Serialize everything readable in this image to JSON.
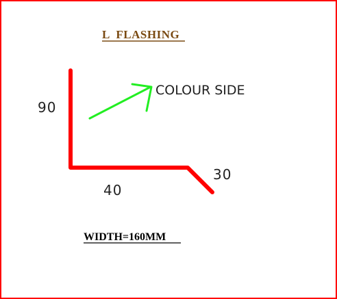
{
  "title": "L  FLASHING",
  "dimensions": {
    "vertical": "90",
    "horizontal": "40",
    "angled": "30"
  },
  "annotation": "COLOUR SIDE",
  "width_note": "WIDTH=160MM",
  "colors": {
    "border": "#ff0000",
    "profile": "#ff0000",
    "arrow": "#22ee22",
    "title": "#7a4a12",
    "text": "#222222"
  }
}
